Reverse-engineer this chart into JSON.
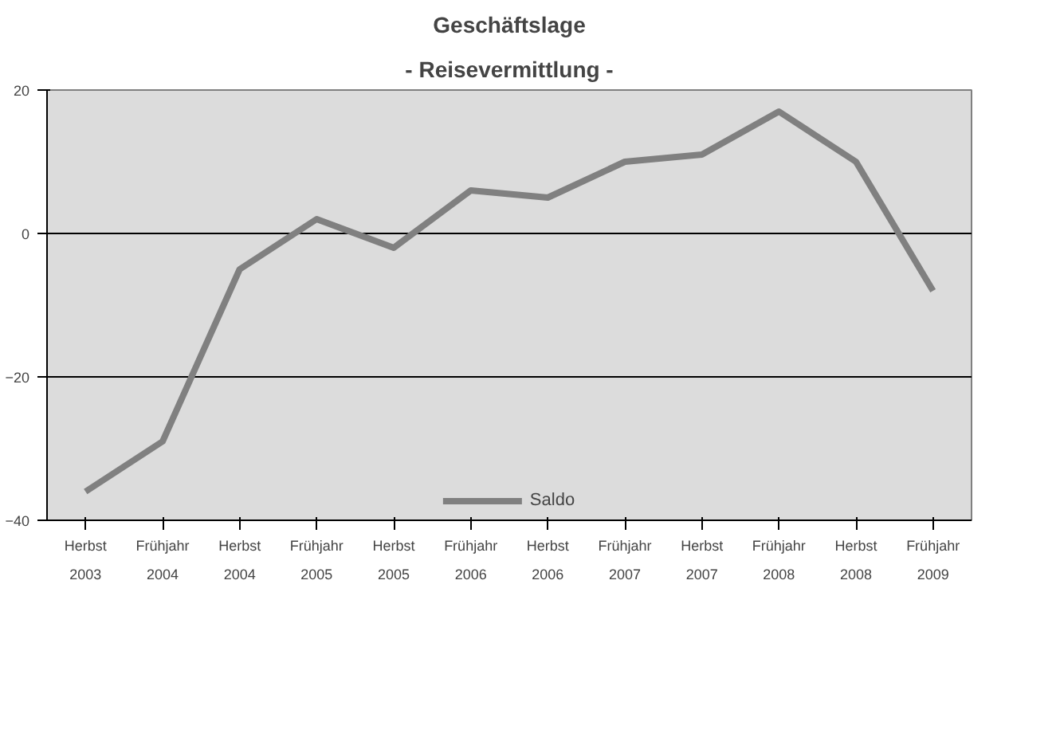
{
  "chart_data": {
    "type": "line",
    "title": "Geschäftslage",
    "subtitle": "- Reisevermittlung -",
    "categories": [
      "Herbst\n2003",
      "Frühjahr\n2004",
      "Herbst\n2004",
      "Frühjahr\n2005",
      "Herbst\n2005",
      "Frühjahr\n2006",
      "Herbst\n2006",
      "Frühjahr\n2007",
      "Herbst\n2007",
      "Frühjahr\n2008",
      "Herbst\n2008",
      "Frühjahr\n2009"
    ],
    "series": [
      {
        "name": "Saldo",
        "color": "#808080",
        "values": [
          -36,
          -29,
          -5,
          2,
          -2,
          6,
          5,
          10,
          11,
          17,
          10,
          -8
        ]
      }
    ],
    "ylim": [
      -40,
      20
    ],
    "yticks": [
      -40,
      -20,
      0,
      20
    ],
    "grid": "y",
    "legend": "bottom",
    "marker": "none",
    "line_style": "solid"
  }
}
